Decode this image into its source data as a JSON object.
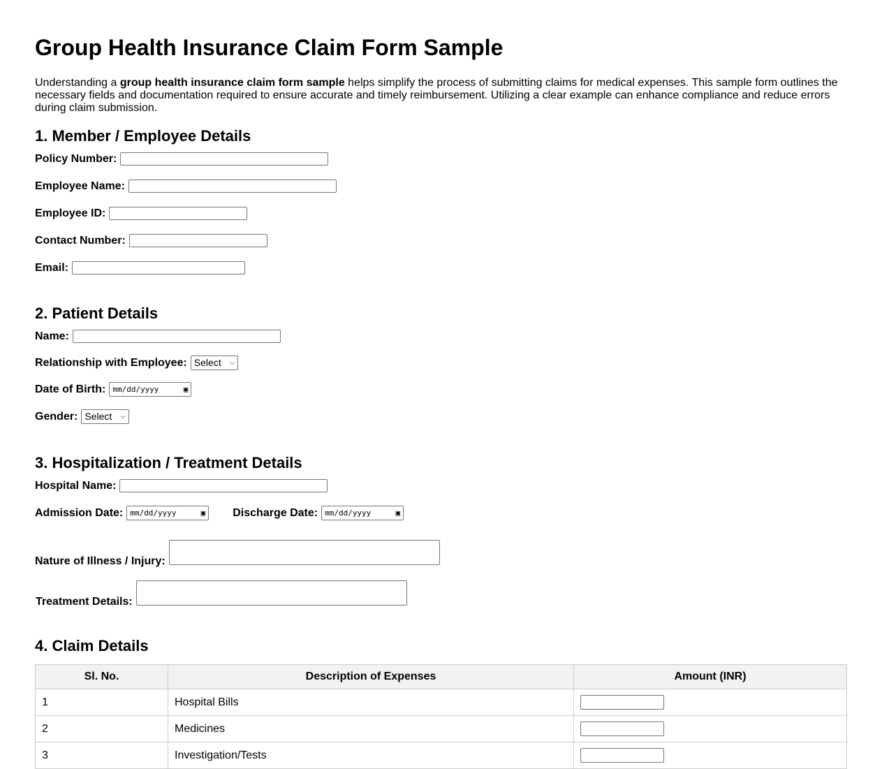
{
  "title": "Group Health Insurance Claim Form Sample",
  "intro": {
    "pre": "Understanding a ",
    "bold": "group health insurance claim form sample",
    "post": " helps simplify the process of submitting claims for medical expenses. This sample form outlines the necessary fields and documentation required to ensure accurate and timely reimbursement. Utilizing a clear example can enhance compliance and reduce errors during claim submission."
  },
  "s1": {
    "heading": "1. Member / Employee Details",
    "policy": "Policy Number:",
    "employee_name": "Employee Name:",
    "employee_id": "Employee ID:",
    "contact": "Contact Number:",
    "email": "Email:"
  },
  "s2": {
    "heading": "2. Patient Details",
    "name": "Name:",
    "relationship": "Relationship with Employee:",
    "relationship_value": "Select",
    "dob": "Date of Birth:",
    "gender": "Gender:",
    "gender_value": "Select"
  },
  "s3": {
    "heading": "3. Hospitalization / Treatment Details",
    "hospital": "Hospital Name:",
    "admission": "Admission Date:",
    "discharge": "Discharge Date:",
    "illness": "Nature of Illness / Injury:",
    "treatment": "Treatment Details:"
  },
  "date_placeholder": "mm/dd/yyyy",
  "s4": {
    "heading": "4. Claim Details",
    "columns": [
      "Sl. No.",
      "Description of Expenses",
      "Amount (INR)"
    ],
    "rows": [
      {
        "no": "1",
        "desc": "Hospital Bills"
      },
      {
        "no": "2",
        "desc": "Medicines"
      },
      {
        "no": "3",
        "desc": "Investigation/Tests"
      }
    ]
  }
}
